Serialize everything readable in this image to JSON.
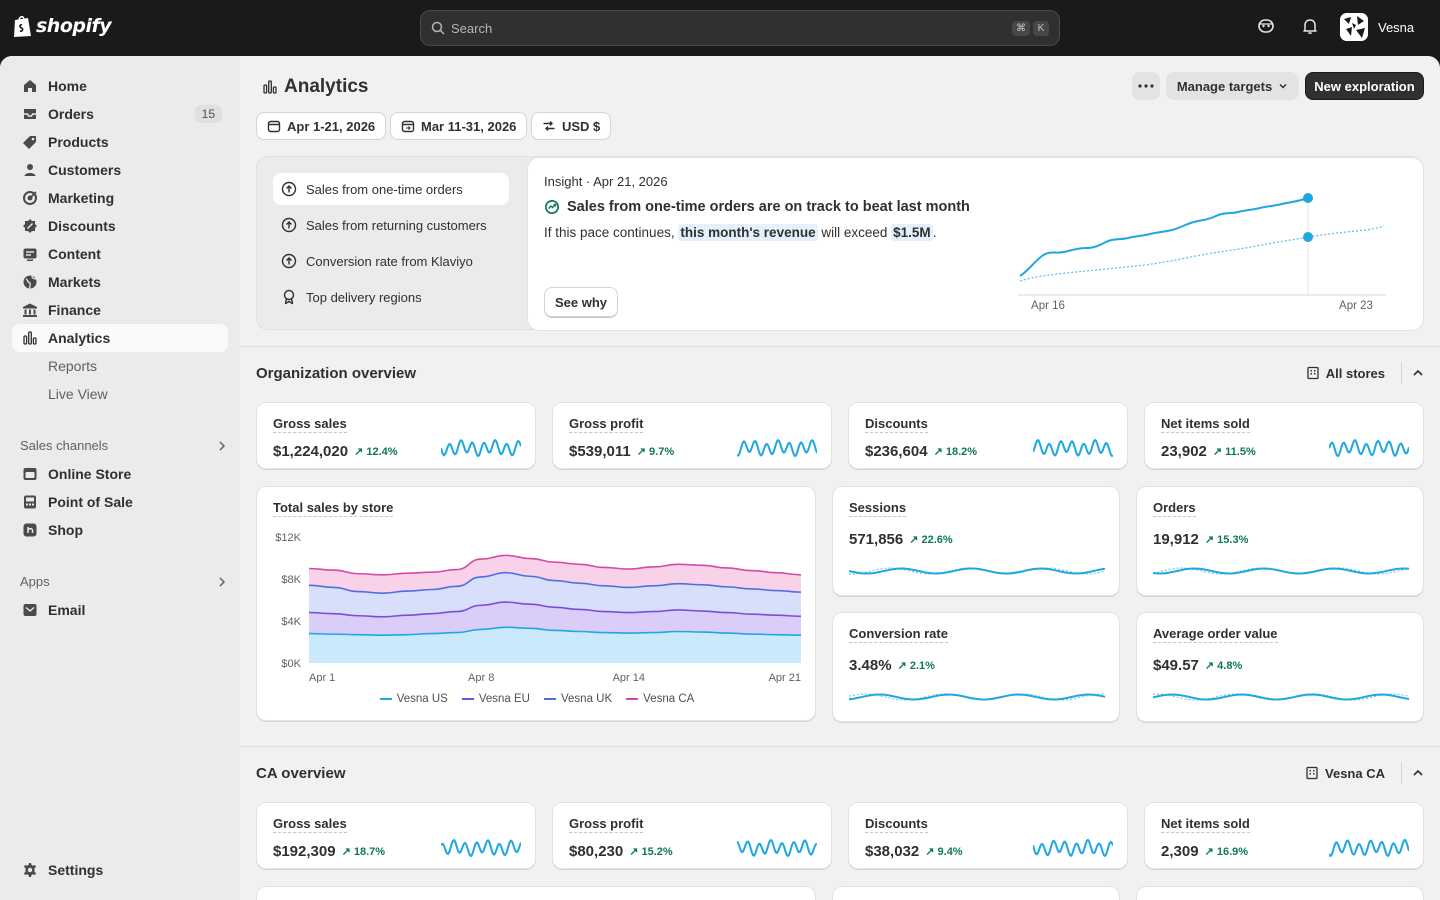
{
  "app": {
    "name": "shopify"
  },
  "topbar": {
    "search_placeholder": "Search",
    "shortcut": [
      "⌘",
      "K"
    ],
    "user_name": "Vesna"
  },
  "sidebar": {
    "items": [
      {
        "label": "Home",
        "icon": "home-icon"
      },
      {
        "label": "Orders",
        "icon": "orders-icon",
        "badge": "15"
      },
      {
        "label": "Products",
        "icon": "tag-icon"
      },
      {
        "label": "Customers",
        "icon": "person-icon"
      },
      {
        "label": "Marketing",
        "icon": "target-icon"
      },
      {
        "label": "Discounts",
        "icon": "discount-icon"
      },
      {
        "label": "Content",
        "icon": "content-icon"
      },
      {
        "label": "Markets",
        "icon": "globe-icon"
      },
      {
        "label": "Finance",
        "icon": "bank-icon"
      },
      {
        "label": "Analytics",
        "icon": "bar-chart-icon",
        "active": true
      }
    ],
    "analytics_sub": [
      "Reports",
      "Live View"
    ],
    "sales_channels_label": "Sales channels",
    "sales_channels": [
      {
        "label": "Online Store",
        "icon": "store-icon"
      },
      {
        "label": "Point of Sale",
        "icon": "pos-icon"
      },
      {
        "label": "Shop",
        "icon": "shop-icon"
      }
    ],
    "apps_label": "Apps",
    "apps": [
      {
        "label": "Email",
        "icon": "email-icon"
      }
    ],
    "settings_label": "Settings"
  },
  "header": {
    "title": "Analytics",
    "more_label": "More actions",
    "manage_targets": "Manage targets",
    "new_exploration": "New exploration"
  },
  "filters": {
    "date_range": "Apr 1-21, 2026",
    "compare_range": "Mar 11-31, 2026",
    "currency": "USD $"
  },
  "insights": {
    "items": [
      {
        "label": "Sales from one-time orders",
        "active": true
      },
      {
        "label": "Sales from returning customers"
      },
      {
        "label": "Conversion rate from Klaviyo"
      },
      {
        "label": "Top delivery regions"
      }
    ],
    "panel": {
      "meta": "Insight · Apr 21, 2026",
      "headline": "Sales from one-time orders are on track to beat last month",
      "body_prefix": "If this pace continues,",
      "body_highlight": "this month's revenue",
      "body_mid": "will exceed",
      "body_value": "$1.5M",
      "body_end": ".",
      "see_why": "See why",
      "chart_x_start": "Apr 16",
      "chart_x_end": "Apr 23"
    }
  },
  "org_overview": {
    "title": "Organization overview",
    "store_filter": "All stores",
    "metrics": [
      {
        "label": "Gross sales",
        "value": "$1,224,020",
        "change": "12.4%"
      },
      {
        "label": "Gross profit",
        "value": "$539,011",
        "change": "9.7%"
      },
      {
        "label": "Discounts",
        "value": "$236,604",
        "change": "18.2%"
      },
      {
        "label": "Net items sold",
        "value": "23,902",
        "change": "11.5%"
      }
    ],
    "side_metrics": [
      {
        "label": "Sessions",
        "value": "571,856",
        "change": "22.6%"
      },
      {
        "label": "Orders",
        "value": "19,912",
        "change": "15.3%"
      },
      {
        "label": "Conversion rate",
        "value": "3.48%",
        "change": "2.1%"
      },
      {
        "label": "Average order value",
        "value": "$49.57",
        "change": "4.8%"
      }
    ]
  },
  "chart_data": {
    "type": "area",
    "title": "Total sales by store",
    "x": [
      "Apr 1",
      "Apr 2",
      "Apr 3",
      "Apr 4",
      "Apr 5",
      "Apr 6",
      "Apr 7",
      "Apr 8",
      "Apr 9",
      "Apr 10",
      "Apr 11",
      "Apr 12",
      "Apr 13",
      "Apr 14",
      "Apr 15",
      "Apr 16",
      "Apr 17",
      "Apr 18",
      "Apr 19",
      "Apr 20",
      "Apr 21"
    ],
    "xticks": [
      "Apr 1",
      "Apr 8",
      "Apr 14",
      "Apr 21"
    ],
    "yticks": [
      "$0K",
      "$4K",
      "$8K",
      "$12K"
    ],
    "ylim": [
      0,
      12000
    ],
    "stacked": true,
    "series": [
      {
        "name": "Vesna US",
        "color": "#1fa7e0",
        "fill": "#c4e7f9",
        "values": [
          2800,
          2750,
          2700,
          2650,
          2700,
          2800,
          2900,
          3200,
          3400,
          3300,
          3100,
          3000,
          2900,
          2850,
          2900,
          3000,
          2950,
          2850,
          2750,
          2700,
          2650
        ]
      },
      {
        "name": "Vesna EU",
        "color": "#7a4fd6",
        "fill": "#d6c8f7",
        "values": [
          2000,
          1950,
          1800,
          1750,
          1850,
          1900,
          2000,
          2300,
          2400,
          2300,
          2200,
          2100,
          2000,
          1950,
          2000,
          2050,
          2000,
          1950,
          1900,
          1850,
          1800
        ]
      },
      {
        "name": "Vesna UK",
        "color": "#4f6fe0",
        "fill": "#d3dbfb",
        "values": [
          2600,
          2500,
          2300,
          2250,
          2300,
          2300,
          2400,
          2700,
          2800,
          2650,
          2550,
          2500,
          2450,
          2400,
          2450,
          2500,
          2500,
          2450,
          2400,
          2350,
          2300
        ]
      },
      {
        "name": "Vesna CA",
        "color": "#d44aa6",
        "fill": "#f6cde6",
        "values": [
          1600,
          1650,
          1700,
          1750,
          1700,
          1650,
          1600,
          1700,
          1650,
          1700,
          1750,
          1800,
          1750,
          1750,
          1800,
          1850,
          1850,
          1800,
          1750,
          1700,
          1650
        ]
      }
    ]
  },
  "ca_overview": {
    "title": "CA overview",
    "store_filter": "Vesna CA",
    "metrics": [
      {
        "label": "Gross sales",
        "value": "$192,309",
        "change": "18.7%"
      },
      {
        "label": "Gross profit",
        "value": "$80,230",
        "change": "15.2%"
      },
      {
        "label": "Discounts",
        "value": "$38,032",
        "change": "9.4%"
      },
      {
        "label": "Net items sold",
        "value": "2,309",
        "change": "16.9%"
      }
    ]
  },
  "colors": {
    "accent": "#1fa7e0",
    "positive": "#0f7a4f",
    "dark_button": "#303030"
  }
}
